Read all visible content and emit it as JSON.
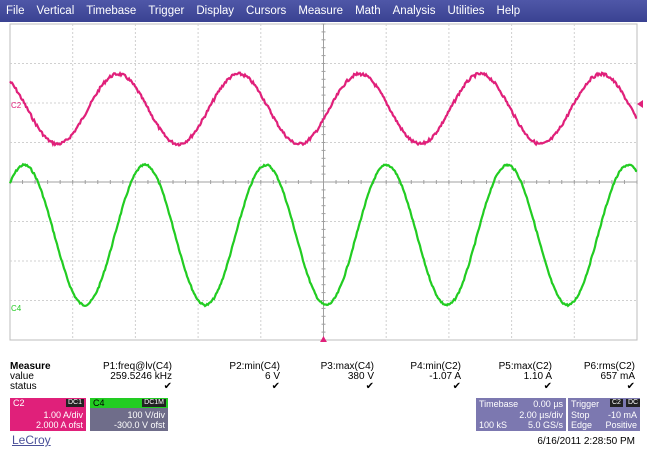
{
  "menu": [
    "File",
    "Vertical",
    "Timebase",
    "Trigger",
    "Display",
    "Cursors",
    "Measure",
    "Math",
    "Analysis",
    "Utilities",
    "Help"
  ],
  "channel_markers": {
    "c2": "C2",
    "c4": "C4"
  },
  "measure": {
    "title": "Measure",
    "row_labels": [
      "value",
      "status"
    ],
    "columns": [
      {
        "name": "P1:freq@lv(C4)",
        "value": "259.5246 kHz",
        "status": "✔"
      },
      {
        "name": "P2:min(C4)",
        "value": "6 V",
        "status": "✔"
      },
      {
        "name": "P3:max(C4)",
        "value": "380 V",
        "status": "✔"
      },
      {
        "name": "P4:min(C2)",
        "value": "-1.07 A",
        "status": "✔"
      },
      {
        "name": "P5:max(C2)",
        "value": "1.10 A",
        "status": "✔"
      },
      {
        "name": "P6:rms(C2)",
        "value": "657 mA",
        "status": "✔"
      }
    ]
  },
  "c2": {
    "name": "C2",
    "coupling": "DC1",
    "scale": "1.00 A/div",
    "offset": "2.000 A ofst",
    "color": "#e0207a"
  },
  "c4": {
    "name": "C4",
    "coupling": "DC1M",
    "scale": "100 V/div",
    "offset": "-300.0 V ofst",
    "color": "#22cc22"
  },
  "timebase": {
    "label": "Timebase",
    "delay": "0.00 µs",
    "scale": "2.00 µs/div",
    "samples": "100 kS",
    "rate": "5.0 GS/s"
  },
  "trigger": {
    "label": "Trigger",
    "source": "C2",
    "coupling": "DC",
    "mode": "Stop",
    "level": "-10 mA",
    "edge_label": "Edge",
    "slope": "Positive"
  },
  "logo": "LeCroy",
  "datetime": "6/16/2011 2:28:50 PM"
}
